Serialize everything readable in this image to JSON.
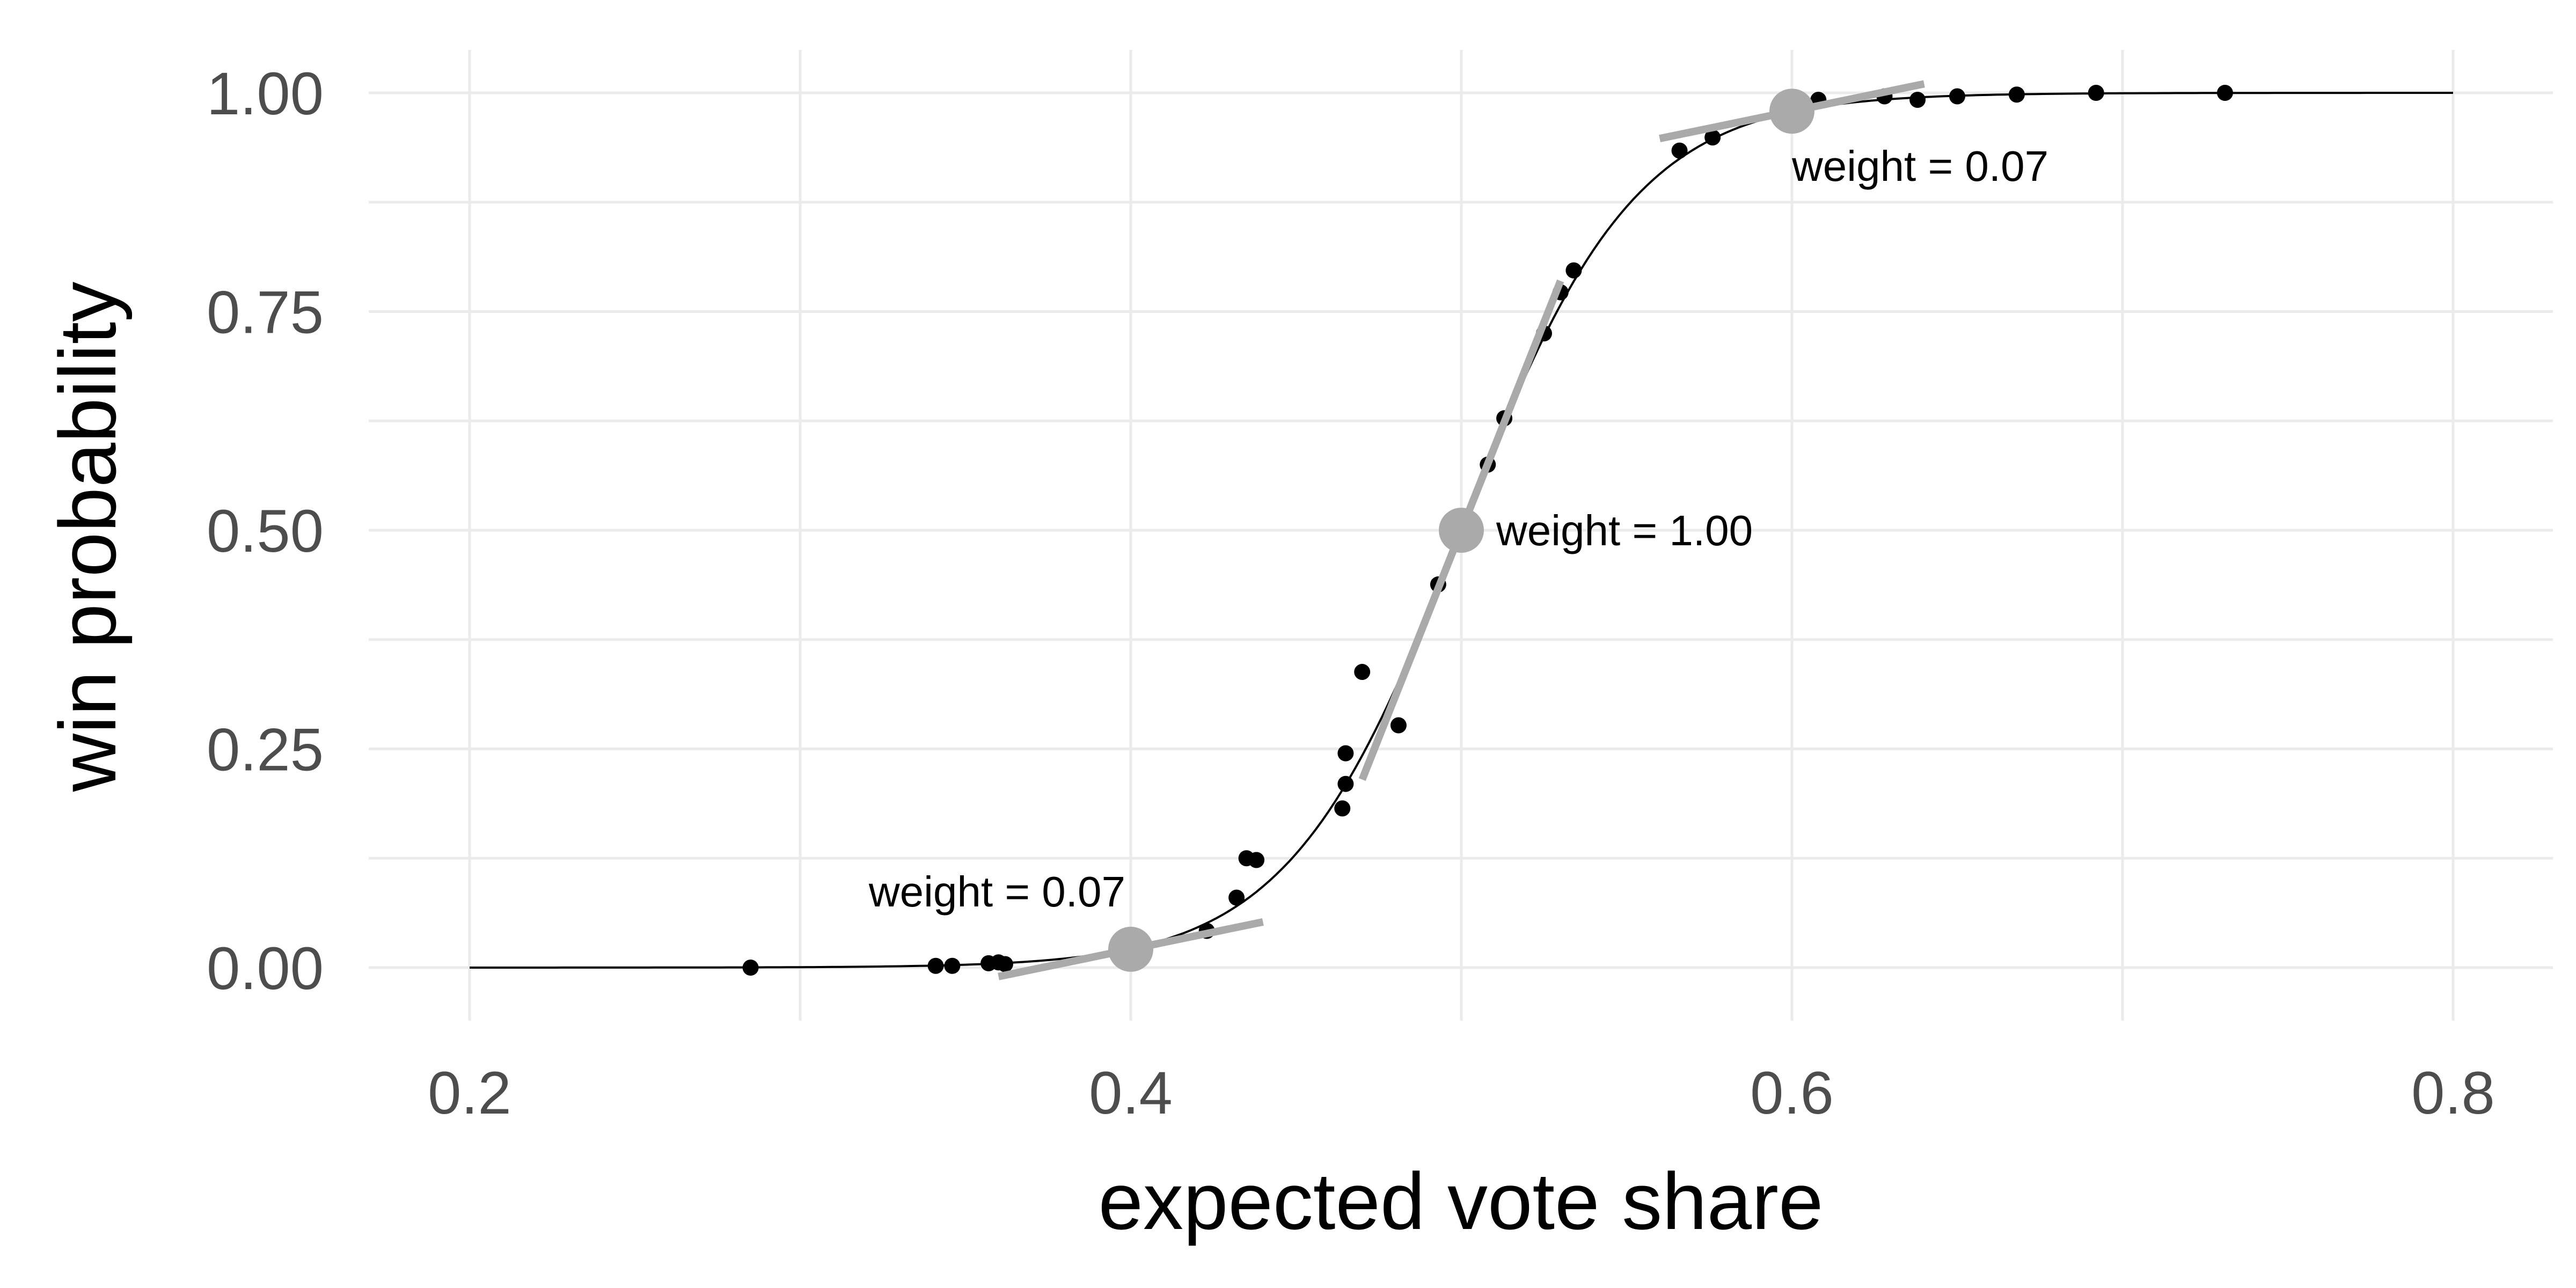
{
  "chart_data": {
    "type": "scatter",
    "xlabel": "expected vote share",
    "ylabel": "win probability",
    "xlim": [
      0.17,
      0.83
    ],
    "ylim": [
      -0.04,
      1.05
    ],
    "x_ticks": [
      0.2,
      0.4,
      0.6,
      0.8
    ],
    "x_tick_labels": [
      "0.2",
      "0.4",
      "0.6",
      "0.8"
    ],
    "y_ticks": [
      0,
      0.25,
      0.5,
      0.75,
      1
    ],
    "y_tick_labels": [
      "0.00",
      "0.25",
      "0.50",
      "0.75",
      "1.00"
    ],
    "grid": true,
    "curve": {
      "type": "logistic",
      "center": 0.5,
      "steepness": 38,
      "x_range": [
        0.2,
        0.8
      ],
      "color": "#000000"
    },
    "points": {
      "color": "#000000",
      "x": [
        0.285,
        0.341,
        0.346,
        0.357,
        0.36,
        0.362,
        0.423,
        0.432,
        0.435,
        0.438,
        0.464,
        0.465,
        0.465,
        0.47,
        0.481,
        0.493,
        0.508,
        0.513,
        0.525,
        0.53,
        0.534,
        0.566,
        0.576,
        0.608,
        0.628,
        0.638,
        0.65,
        0.668,
        0.692,
        0.731
      ],
      "y": [
        0.0,
        0.002,
        0.002,
        0.005,
        0.006,
        0.004,
        0.042,
        0.08,
        0.125,
        0.123,
        0.182,
        0.21,
        0.245,
        0.338,
        0.277,
        0.438,
        0.575,
        0.628,
        0.725,
        0.772,
        0.797,
        0.934,
        0.949,
        0.992,
        0.996,
        0.992,
        0.996,
        0.998,
        1.0,
        1.0
      ]
    },
    "highlight_color": "#aaaaaa",
    "highlights": [
      {
        "x": 0.4,
        "y": 0.021,
        "half_width": 0.04,
        "label": "weight = 0.07",
        "label_pos": "above-left"
      },
      {
        "x": 0.5,
        "y": 0.5,
        "half_width": 0.03,
        "label": "weight = 1.00",
        "label_pos": "right"
      },
      {
        "x": 0.6,
        "y": 0.979,
        "half_width": 0.04,
        "label": "weight = 0.07",
        "label_pos": "below-right"
      }
    ]
  }
}
